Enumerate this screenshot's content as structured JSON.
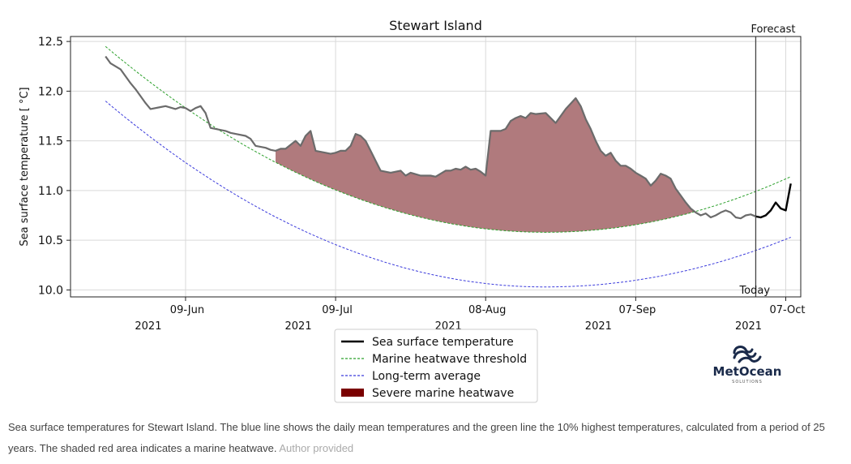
{
  "chart_data": {
    "type": "line",
    "title": "Stewart Island",
    "ylabel": "Sea surface temperature [ °C]",
    "xlabel": "",
    "ylim": [
      9.93,
      12.55
    ],
    "xlim": [
      "2021-05-17",
      "2021-10-10"
    ],
    "yticks": [
      10.0,
      10.5,
      11.0,
      11.5,
      12.0,
      12.5
    ],
    "xticks": [
      {
        "date": "2021-06-09",
        "label": "09-Jun",
        "year": "2021"
      },
      {
        "date": "2021-07-09",
        "label": "09-Jul",
        "year": "2021"
      },
      {
        "date": "2021-08-08",
        "label": "08-Aug",
        "year": "2021"
      },
      {
        "date": "2021-09-07",
        "label": "07-Sep",
        "year": "2021"
      },
      {
        "date": "2021-10-07",
        "label": "07-Oct",
        "year": "2021"
      }
    ],
    "grid": true,
    "forecast_line": {
      "date": "2021-10-01",
      "label_top": "Forecast",
      "label_bottom": "Today"
    },
    "series": [
      {
        "name": "Sea surface temperature",
        "color": "#000000",
        "x": [
          "2021-05-24",
          "2021-05-25",
          "2021-05-27",
          "2021-05-28",
          "2021-05-29",
          "2021-05-30",
          "2021-05-31",
          "2021-06-01",
          "2021-06-02",
          "2021-06-04",
          "2021-06-05",
          "2021-06-07",
          "2021-06-08",
          "2021-06-09",
          "2021-06-10",
          "2021-06-11",
          "2021-06-12",
          "2021-06-13",
          "2021-06-14",
          "2021-06-15",
          "2021-06-17",
          "2021-06-18",
          "2021-06-19",
          "2021-06-21",
          "2021-06-22",
          "2021-06-23",
          "2021-06-25",
          "2021-06-26",
          "2021-06-27",
          "2021-06-28",
          "2021-06-29",
          "2021-07-01",
          "2021-07-02",
          "2021-07-03",
          "2021-07-04",
          "2021-07-05",
          "2021-07-07",
          "2021-07-08",
          "2021-07-09",
          "2021-07-10",
          "2021-07-11",
          "2021-07-12",
          "2021-07-13",
          "2021-07-14",
          "2021-07-15",
          "2021-07-16",
          "2021-07-17",
          "2021-07-18",
          "2021-07-20",
          "2021-07-22",
          "2021-07-23",
          "2021-07-24",
          "2021-07-26",
          "2021-07-28",
          "2021-07-29",
          "2021-07-31",
          "2021-08-01",
          "2021-08-02",
          "2021-08-03",
          "2021-08-04",
          "2021-08-05",
          "2021-08-06",
          "2021-08-07",
          "2021-08-08",
          "2021-08-09",
          "2021-08-10",
          "2021-08-11",
          "2021-08-12",
          "2021-08-13",
          "2021-08-14",
          "2021-08-15",
          "2021-08-16",
          "2021-08-17",
          "2021-08-18",
          "2021-08-20",
          "2021-08-22",
          "2021-08-24",
          "2021-08-26",
          "2021-08-27",
          "2021-08-28",
          "2021-08-29",
          "2021-08-30",
          "2021-08-31",
          "2021-09-01",
          "2021-09-02",
          "2021-09-03",
          "2021-09-04",
          "2021-09-05",
          "2021-09-06",
          "2021-09-07",
          "2021-09-08",
          "2021-09-09",
          "2021-09-10",
          "2021-09-11",
          "2021-09-12",
          "2021-09-13",
          "2021-09-14",
          "2021-09-15",
          "2021-09-16",
          "2021-09-17",
          "2021-09-18",
          "2021-09-19",
          "2021-09-20",
          "2021-09-21",
          "2021-09-22",
          "2021-09-23",
          "2021-09-24",
          "2021-09-25",
          "2021-09-26",
          "2021-09-27",
          "2021-09-28",
          "2021-09-29",
          "2021-09-30",
          "2021-10-01"
        ],
        "values": [
          12.35,
          12.28,
          12.22,
          12.15,
          12.08,
          12.02,
          11.95,
          11.88,
          11.82,
          11.84,
          11.85,
          11.82,
          11.84,
          11.83,
          11.8,
          11.83,
          11.85,
          11.78,
          11.63,
          11.62,
          11.6,
          11.58,
          11.57,
          11.55,
          11.52,
          11.45,
          11.43,
          11.41,
          11.4,
          11.42,
          11.42,
          11.5,
          11.45,
          11.55,
          11.6,
          11.4,
          11.38,
          11.37,
          11.38,
          11.4,
          11.4,
          11.45,
          11.57,
          11.55,
          11.5,
          11.4,
          11.3,
          11.2,
          11.18,
          11.2,
          11.15,
          11.18,
          11.15,
          11.15,
          11.14,
          11.2,
          11.2,
          11.22,
          11.21,
          11.24,
          11.21,
          11.22,
          11.19,
          11.15,
          11.6,
          11.6,
          11.6,
          11.62,
          11.7,
          11.73,
          11.75,
          11.73,
          11.78,
          11.77,
          11.78,
          11.68,
          11.82,
          11.93,
          11.85,
          11.72,
          11.62,
          11.5,
          11.4,
          11.35,
          11.38,
          11.3,
          11.25,
          11.25,
          11.22,
          11.18,
          11.15,
          11.12,
          11.05,
          11.1,
          11.17,
          11.15,
          11.12,
          11.02,
          10.95,
          10.88,
          10.82,
          10.78,
          10.75,
          10.77,
          10.73,
          10.75,
          10.78,
          10.8,
          10.78,
          10.73,
          10.72,
          10.75,
          10.76,
          10.74
        ]
      },
      {
        "name": "Sea surface temperature forecast",
        "color": "#000000",
        "x": [
          "2021-10-01",
          "2021-10-02",
          "2021-10-03",
          "2021-10-04",
          "2021-10-05",
          "2021-10-06",
          "2021-10-07",
          "2021-10-08"
        ],
        "values": [
          10.74,
          10.73,
          10.75,
          10.8,
          10.88,
          10.82,
          10.8,
          11.07
        ]
      }
    ],
    "threshold": {
      "name": "Marine heatwave threshold",
      "color": "#2ca02c",
      "curve": {
        "start": "2021-05-24",
        "start_value": 12.45,
        "min_date": "2021-08-20",
        "min_value": 10.58,
        "end": "2021-10-08",
        "end_value": 11.14
      }
    },
    "average": {
      "name": "Long-term average",
      "color": "#3b3bdc",
      "curve": {
        "start": "2021-05-24",
        "start_value": 11.9,
        "min_date": "2021-08-20",
        "min_value": 10.03,
        "end": "2021-10-08",
        "end_value": 10.53
      }
    },
    "heatwave": {
      "name": "Severe marine heatwave",
      "color": "#7a0000",
      "fill_color": "#b07a7d",
      "start": "2021-06-27",
      "end": "2021-09-19"
    },
    "legend": {
      "position": "below-center",
      "entries": [
        {
          "label": "Sea surface temperature",
          "style": "line",
          "color": "#000000"
        },
        {
          "label": "Marine heatwave threshold",
          "style": "dashed",
          "color": "#2ca02c"
        },
        {
          "label": "Long-term average",
          "style": "dashed",
          "color": "#3b3bdc"
        },
        {
          "label": "Severe marine heatwave",
          "style": "patch",
          "color": "#7a0000"
        }
      ]
    }
  },
  "logo": {
    "name": "MetOcean",
    "sub": "SOLUTIONS",
    "color": "#1a2a4a"
  },
  "caption": {
    "text": "Sea surface temperatures for Stewart Island. The blue line shows the daily mean temperatures and the green line the 10% highest temperatures, calculated from a period of 25 years. The shaded red area indicates a marine heatwave.",
    "credit": "Author provided"
  }
}
